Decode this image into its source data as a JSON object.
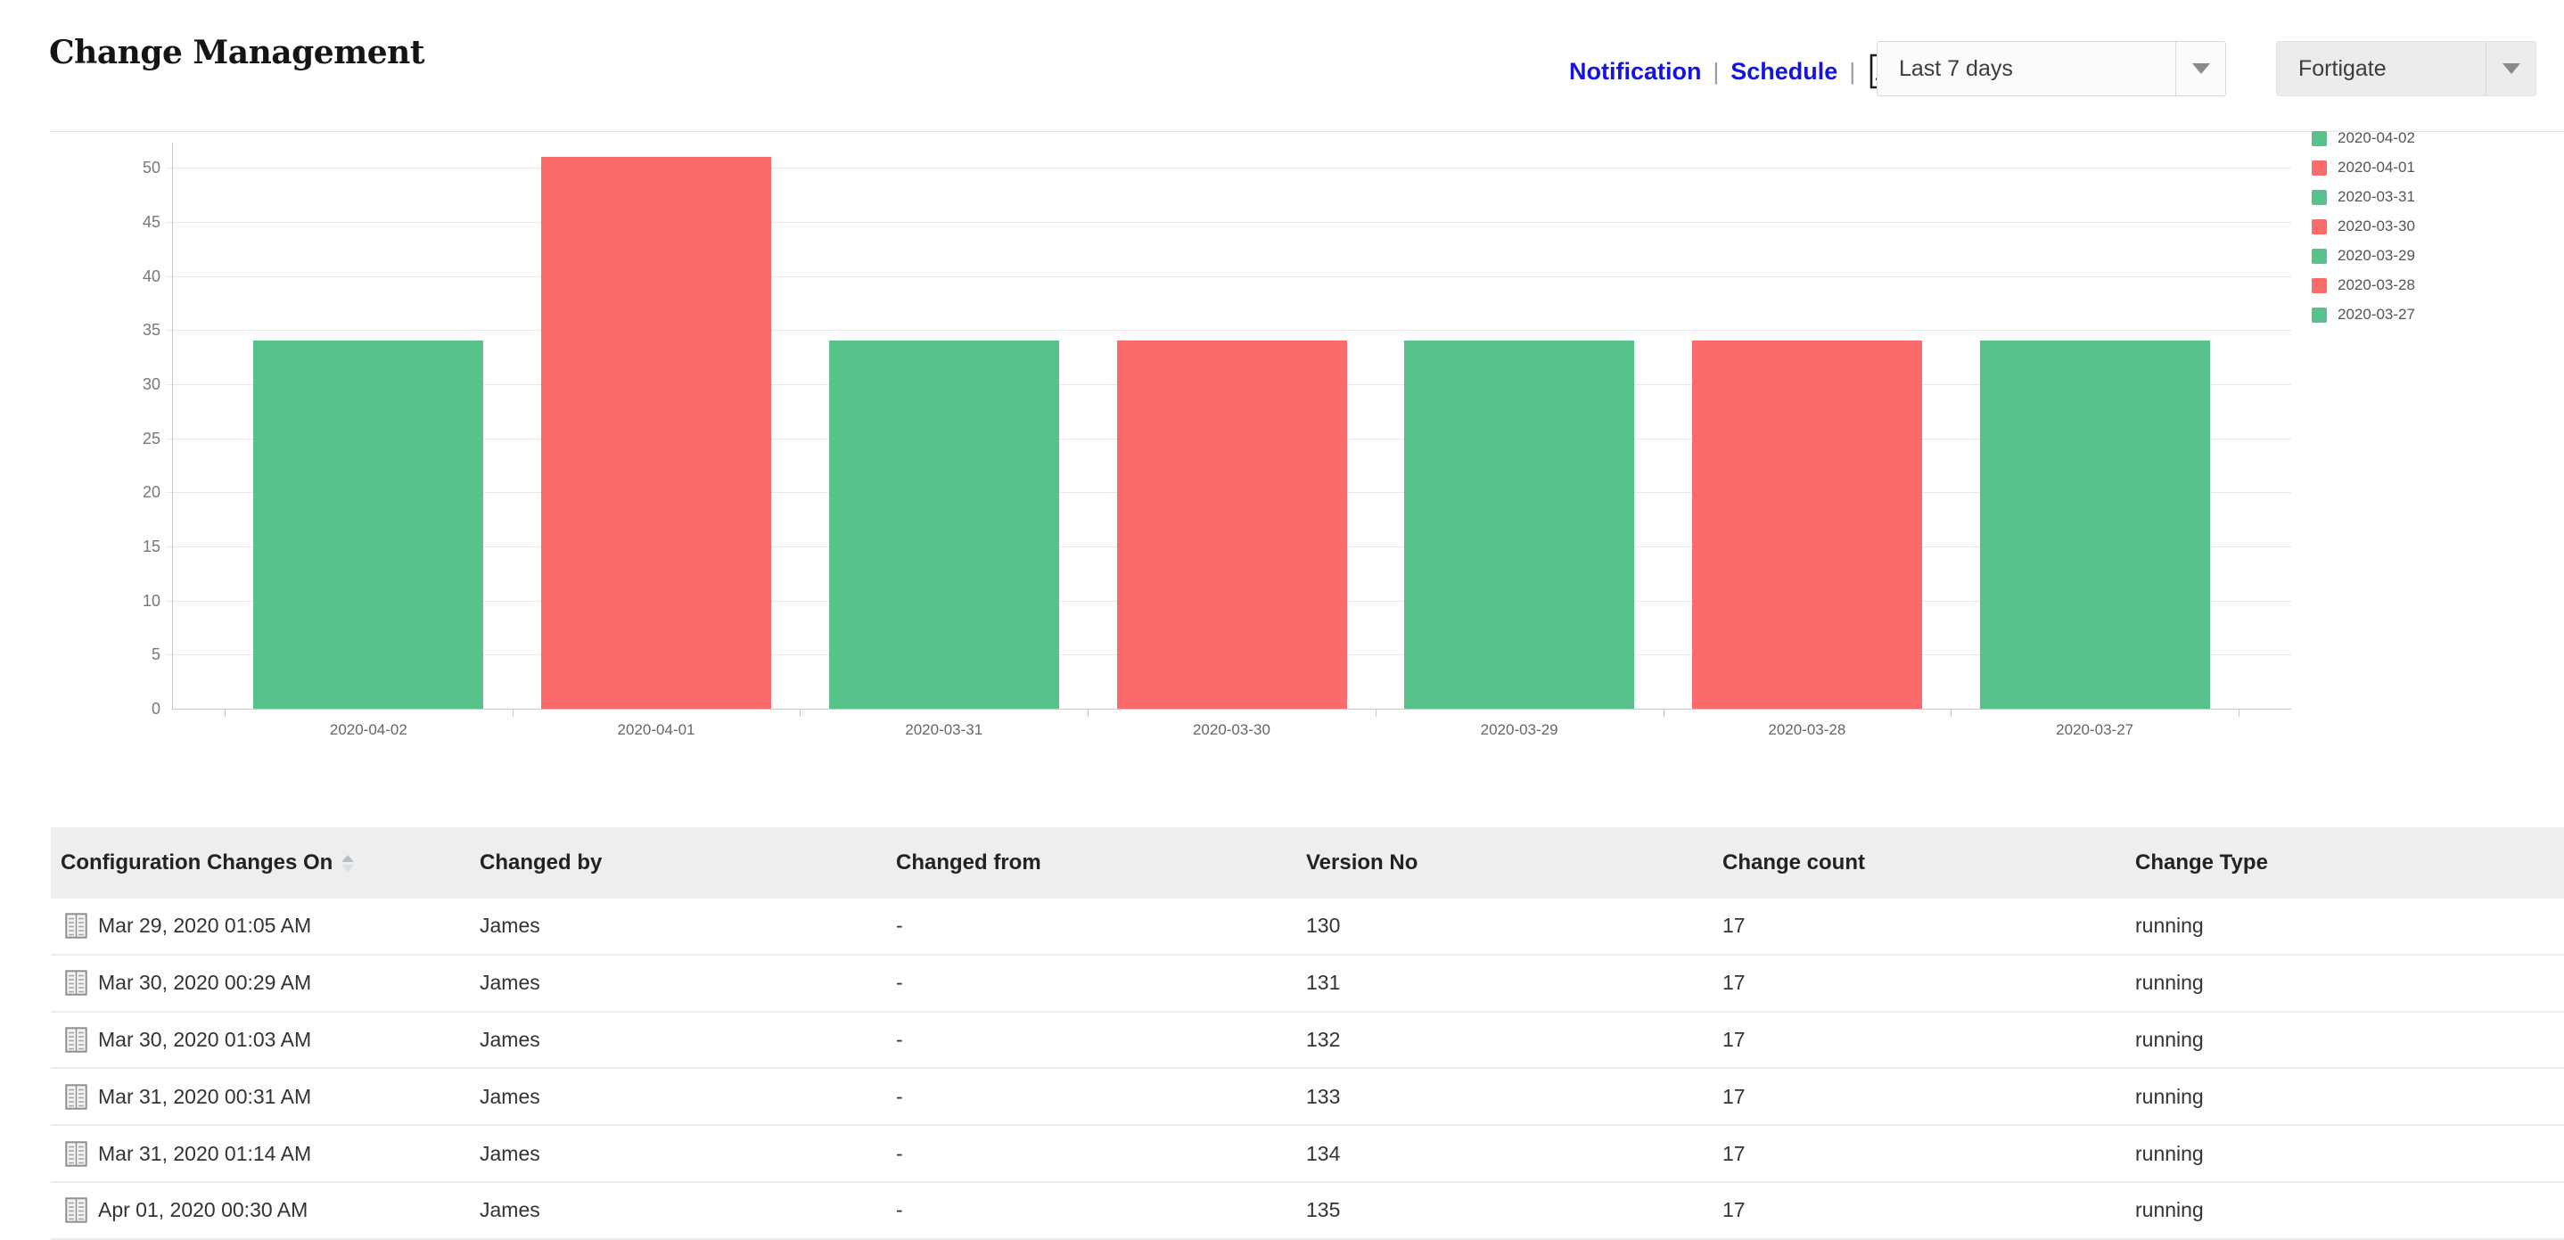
{
  "header": {
    "title": "Change Management",
    "links": [
      {
        "label": "Notification"
      },
      {
        "label": "Schedule"
      }
    ],
    "separator": "|",
    "period_dropdown": {
      "value": "Last 7 days"
    },
    "device_dropdown": {
      "value": "Fortigate"
    }
  },
  "chart_data": {
    "type": "bar",
    "categories": [
      "2020-04-02",
      "2020-04-01",
      "2020-03-31",
      "2020-03-30",
      "2020-03-29",
      "2020-03-28",
      "2020-03-27"
    ],
    "values": [
      34,
      51,
      34,
      34,
      34,
      34,
      34
    ],
    "bar_colors": [
      "#57c289",
      "#fb6b6b",
      "#57c289",
      "#fb6b6b",
      "#57c289",
      "#fb6b6b",
      "#57c289"
    ],
    "xlabel": "",
    "ylabel": "",
    "ylim": [
      0,
      50
    ],
    "yticks": [
      0,
      5,
      10,
      15,
      20,
      25,
      30,
      35,
      40,
      45,
      50
    ],
    "grid": true,
    "legend_position": "right",
    "legend": [
      {
        "label": "2020-04-02",
        "color": "#57c289"
      },
      {
        "label": "2020-04-01",
        "color": "#fb6b6b"
      },
      {
        "label": "2020-03-31",
        "color": "#57c289"
      },
      {
        "label": "2020-03-30",
        "color": "#fb6b6b"
      },
      {
        "label": "2020-03-29",
        "color": "#57c289"
      },
      {
        "label": "2020-03-28",
        "color": "#fb6b6b"
      },
      {
        "label": "2020-03-27",
        "color": "#57c289"
      }
    ]
  },
  "table": {
    "columns": [
      "Configuration Changes On",
      "Changed by",
      "Changed from",
      "Version No",
      "Change count",
      "Change Type"
    ],
    "sort": {
      "column": "Configuration Changes On",
      "direction": "asc"
    },
    "rows": [
      {
        "changes_on": "Mar 29, 2020 01:05 AM",
        "changed_by": "James",
        "changed_from": "-",
        "version_no": "130",
        "change_count": "17",
        "change_type": "running"
      },
      {
        "changes_on": "Mar 30, 2020 00:29 AM",
        "changed_by": "James",
        "changed_from": "-",
        "version_no": "131",
        "change_count": "17",
        "change_type": "running"
      },
      {
        "changes_on": "Mar 30, 2020 01:03 AM",
        "changed_by": "James",
        "changed_from": "-",
        "version_no": "132",
        "change_count": "17",
        "change_type": "running"
      },
      {
        "changes_on": "Mar 31, 2020 00:31 AM",
        "changed_by": "James",
        "changed_from": "-",
        "version_no": "133",
        "change_count": "17",
        "change_type": "running"
      },
      {
        "changes_on": "Mar 31, 2020 01:14 AM",
        "changed_by": "James",
        "changed_from": "-",
        "version_no": "134",
        "change_count": "17",
        "change_type": "running"
      },
      {
        "changes_on": "Apr 01, 2020 00:30 AM",
        "changed_by": "James",
        "changed_from": "-",
        "version_no": "135",
        "change_count": "17",
        "change_type": "running"
      }
    ]
  },
  "colors": {
    "link_blue": "#1414e0",
    "bar_green": "#57c289",
    "bar_red": "#fb6b6b",
    "table_header_bg": "#eeeeee",
    "gridline": "#e9e9e9",
    "axis": "#c9c9c9"
  }
}
